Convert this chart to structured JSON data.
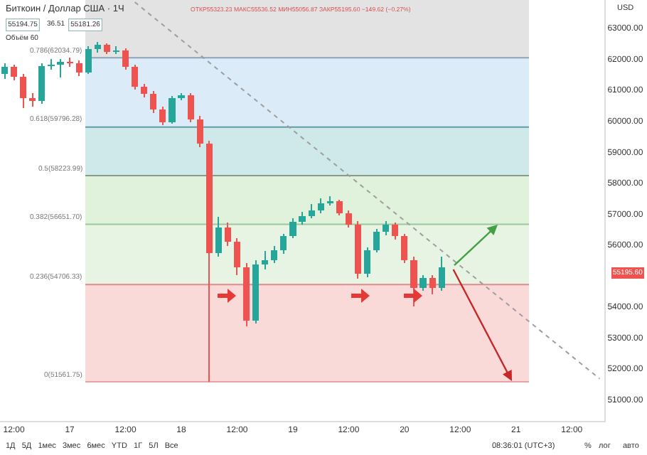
{
  "chart_data": {
    "type": "candlestick",
    "categories": [
      null,
      "12:00",
      null,
      null,
      null,
      null,
      null,
      "17",
      null,
      null,
      null,
      null,
      null,
      "12:00",
      null,
      null,
      null,
      null,
      null,
      "18",
      null,
      null,
      null,
      null,
      null,
      "12:00",
      null,
      null,
      null,
      null,
      null,
      "19",
      null,
      null,
      null,
      null,
      null,
      "12:00",
      null,
      null,
      null,
      null,
      null,
      "20",
      null,
      null,
      null,
      null,
      null,
      "12:00",
      null,
      null,
      null,
      null,
      null,
      "21",
      null,
      null,
      null,
      null,
      null,
      "12:00",
      null,
      null,
      null
    ],
    "ohlc": [
      [
        61500,
        61850,
        61350,
        61730
      ],
      [
        61730,
        61800,
        61300,
        61410
      ],
      [
        61410,
        61500,
        60400,
        60730
      ],
      [
        60730,
        60900,
        60450,
        60640
      ],
      [
        60640,
        61850,
        60550,
        61770
      ],
      [
        61770,
        62000,
        61650,
        61820
      ],
      [
        61820,
        62000,
        61400,
        61910
      ],
      [
        61910,
        62050,
        61750,
        61860
      ],
      [
        61860,
        61950,
        61450,
        61550
      ],
      [
        61550,
        62400,
        61500,
        62320
      ],
      [
        62320,
        62550,
        62200,
        62450
      ],
      [
        62450,
        62500,
        62150,
        62230
      ],
      [
        62230,
        62400,
        62150,
        62270
      ],
      [
        62270,
        62330,
        61650,
        61730
      ],
      [
        61730,
        61800,
        61000,
        61090
      ],
      [
        61090,
        61200,
        60750,
        60860
      ],
      [
        60860,
        60950,
        60250,
        60360
      ],
      [
        60360,
        60450,
        59850,
        59950
      ],
      [
        59950,
        60800,
        59900,
        60730
      ],
      [
        60730,
        60900,
        60650,
        60820
      ],
      [
        60820,
        60900,
        59950,
        60050
      ],
      [
        60050,
        60150,
        59150,
        59270
      ],
      [
        59270,
        59350,
        51560,
        55730
      ],
      [
        55730,
        56900,
        55600,
        56550
      ],
      [
        56550,
        56700,
        55950,
        56090
      ],
      [
        56090,
        56200,
        55000,
        55270
      ],
      [
        55270,
        55400,
        53350,
        53550
      ],
      [
        53550,
        55500,
        53450,
        55360
      ],
      [
        55360,
        55800,
        55200,
        55500
      ],
      [
        55500,
        55950,
        55400,
        55820
      ],
      [
        55820,
        56350,
        55700,
        56270
      ],
      [
        56270,
        56850,
        56200,
        56730
      ],
      [
        56730,
        57050,
        56650,
        56910
      ],
      [
        56910,
        57300,
        56850,
        57090
      ],
      [
        57090,
        57500,
        57000,
        57320
      ],
      [
        57320,
        57550,
        57250,
        57410
      ],
      [
        57410,
        57450,
        56950,
        57000
      ],
      [
        57000,
        57100,
        56550,
        56640
      ],
      [
        56640,
        56750,
        54900,
        55050
      ],
      [
        55050,
        55900,
        54950,
        55820
      ],
      [
        55820,
        56500,
        55750,
        56410
      ],
      [
        56410,
        56750,
        56300,
        56640
      ],
      [
        56640,
        56700,
        56150,
        56270
      ],
      [
        56270,
        56350,
        55400,
        55500
      ],
      [
        55500,
        55600,
        54000,
        54590
      ],
      [
        54590,
        55000,
        54500,
        54910
      ],
      [
        54910,
        55000,
        54400,
        54590
      ],
      [
        54590,
        55600,
        54500,
        55270
      ],
      null,
      null,
      null,
      null,
      null,
      null,
      null,
      null,
      null,
      null,
      null,
      null,
      null,
      null,
      null,
      null,
      null
    ],
    "colors": [
      "#26a69a",
      "#ef5350",
      "#ef5350",
      "#ef5350",
      "#26a69a",
      "#26a69a",
      "#26a69a",
      "#ef5350",
      "#ef5350",
      "#26a69a",
      "#26a69a",
      "#ef5350",
      "#26a69a",
      "#ef5350",
      "#ef5350",
      "#ef5350",
      "#ef5350",
      "#ef5350",
      "#26a69a",
      "#26a69a",
      "#ef5350",
      "#ef5350",
      "#ef5350",
      "#26a69a",
      "#ef5350",
      "#ef5350",
      "#ef5350",
      "#26a69a",
      "#26a69a",
      "#26a69a",
      "#26a69a",
      "#26a69a",
      "#26a69a",
      "#26a69a",
      "#26a69a",
      "#26a69a",
      "#ef5350",
      "#ef5350",
      "#ef5350",
      "#26a69a",
      "#26a69a",
      "#26a69a",
      "#ef5350",
      "#ef5350",
      "#ef5350",
      "#26a69a",
      "#ef5350",
      "#26a69a",
      null,
      null,
      null,
      null,
      null,
      null,
      null,
      null,
      null,
      null,
      null,
      null,
      null,
      null,
      null,
      null,
      null
    ],
    "series": [
      {
        "type": "line",
        "values": [
          null,
          null,
          null,
          null,
          null,
          null,
          null,
          null,
          null,
          null,
          null,
          null,
          null,
          null,
          63830,
          null,
          null,
          null,
          null,
          null,
          null,
          null,
          null,
          null,
          null,
          null,
          null,
          null,
          null,
          null,
          null,
          null,
          null,
          null,
          null,
          null,
          null,
          null,
          null,
          null,
          null,
          null,
          null,
          null,
          null,
          null,
          null,
          null,
          null,
          null,
          null,
          null,
          null,
          null,
          null,
          null,
          null,
          null,
          null,
          null,
          null,
          null,
          null,
          null,
          51660
        ],
        "color": "#9e9e9e",
        "line_style": "dotted"
      }
    ],
    "ylim": [
      50300,
      63900
    ],
    "yticks": [
      {
        "value": 51000,
        "label": "51000.00"
      },
      {
        "value": 52000,
        "label": "52000.00"
      },
      {
        "value": 53000,
        "label": "53000.00"
      },
      {
        "value": 54000,
        "label": "54000.00"
      },
      {
        "value": 56000,
        "label": "56000.00"
      },
      {
        "value": 57000,
        "label": "57000.00"
      },
      {
        "value": 58000,
        "label": "58000.00"
      },
      {
        "value": 59000,
        "label": "59000.00"
      },
      {
        "value": 60000,
        "label": "60000.00"
      },
      {
        "value": 61000,
        "label": "61000.00"
      },
      {
        "value": 62000,
        "label": "62000.00"
      },
      {
        "value": 63000,
        "label": "63000.00"
      }
    ],
    "bands": [
      {
        "axis": "y",
        "from": 62034.79,
        "to": 63900,
        "color": "#e3e3e3"
      },
      {
        "axis": "y",
        "from": 59796.28,
        "to": 62034.79,
        "color": "#dcebf8"
      },
      {
        "axis": "y",
        "from": 58223.99,
        "to": 59796.28,
        "color": "#cfe9ea"
      },
      {
        "axis": "y",
        "from": 56651.7,
        "to": 58223.99,
        "color": "#e0f1dc"
      },
      {
        "axis": "y",
        "from": 54706.33,
        "to": 56651.7,
        "color": "#e7f4e3"
      },
      {
        "axis": "y",
        "from": 51561.75,
        "to": 54706.33,
        "color": "#fad9d9"
      }
    ],
    "ref_lines": [
      {
        "axis": "y",
        "value": 62034.79,
        "label": "0.786(62034.79)",
        "color": "#8fa3b5"
      },
      {
        "axis": "y",
        "value": 59796.28,
        "label": "0.618(59796.28)",
        "color": "#5f9ea0"
      },
      {
        "axis": "y",
        "value": 58223.99,
        "label": "0.5(58223.99)",
        "color": "#8a9a8a"
      },
      {
        "axis": "y",
        "value": 56651.7,
        "label": "0.382(56651.70)",
        "color": "#9cc79c"
      },
      {
        "axis": "y",
        "value": 54706.33,
        "label": "0.236(54706.33)",
        "color": "#e08a8a"
      },
      {
        "axis": "y",
        "value": 51561.75,
        "label": "0(51561.75)",
        "color": "#e9a5a5"
      }
    ],
    "annotations": [
      "Биткоин / Доллар США · 1Ч",
      "ОТКР55323.23 МАКС55536.52 МИН55056.87 ЗАКР55195.60 −149.62 (−0.27%)",
      "55194.75",
      "36.51",
      "55181.26",
      "Объём 60",
      "USD",
      "1Д   5Д   1мес   3мес   6мес   YTD   1Г   5Л   Все",
      "08:36:01 (UTC+3)",
      "%",
      "лог",
      "авто",
      "55195.60"
    ],
    "grid": false
  }
}
